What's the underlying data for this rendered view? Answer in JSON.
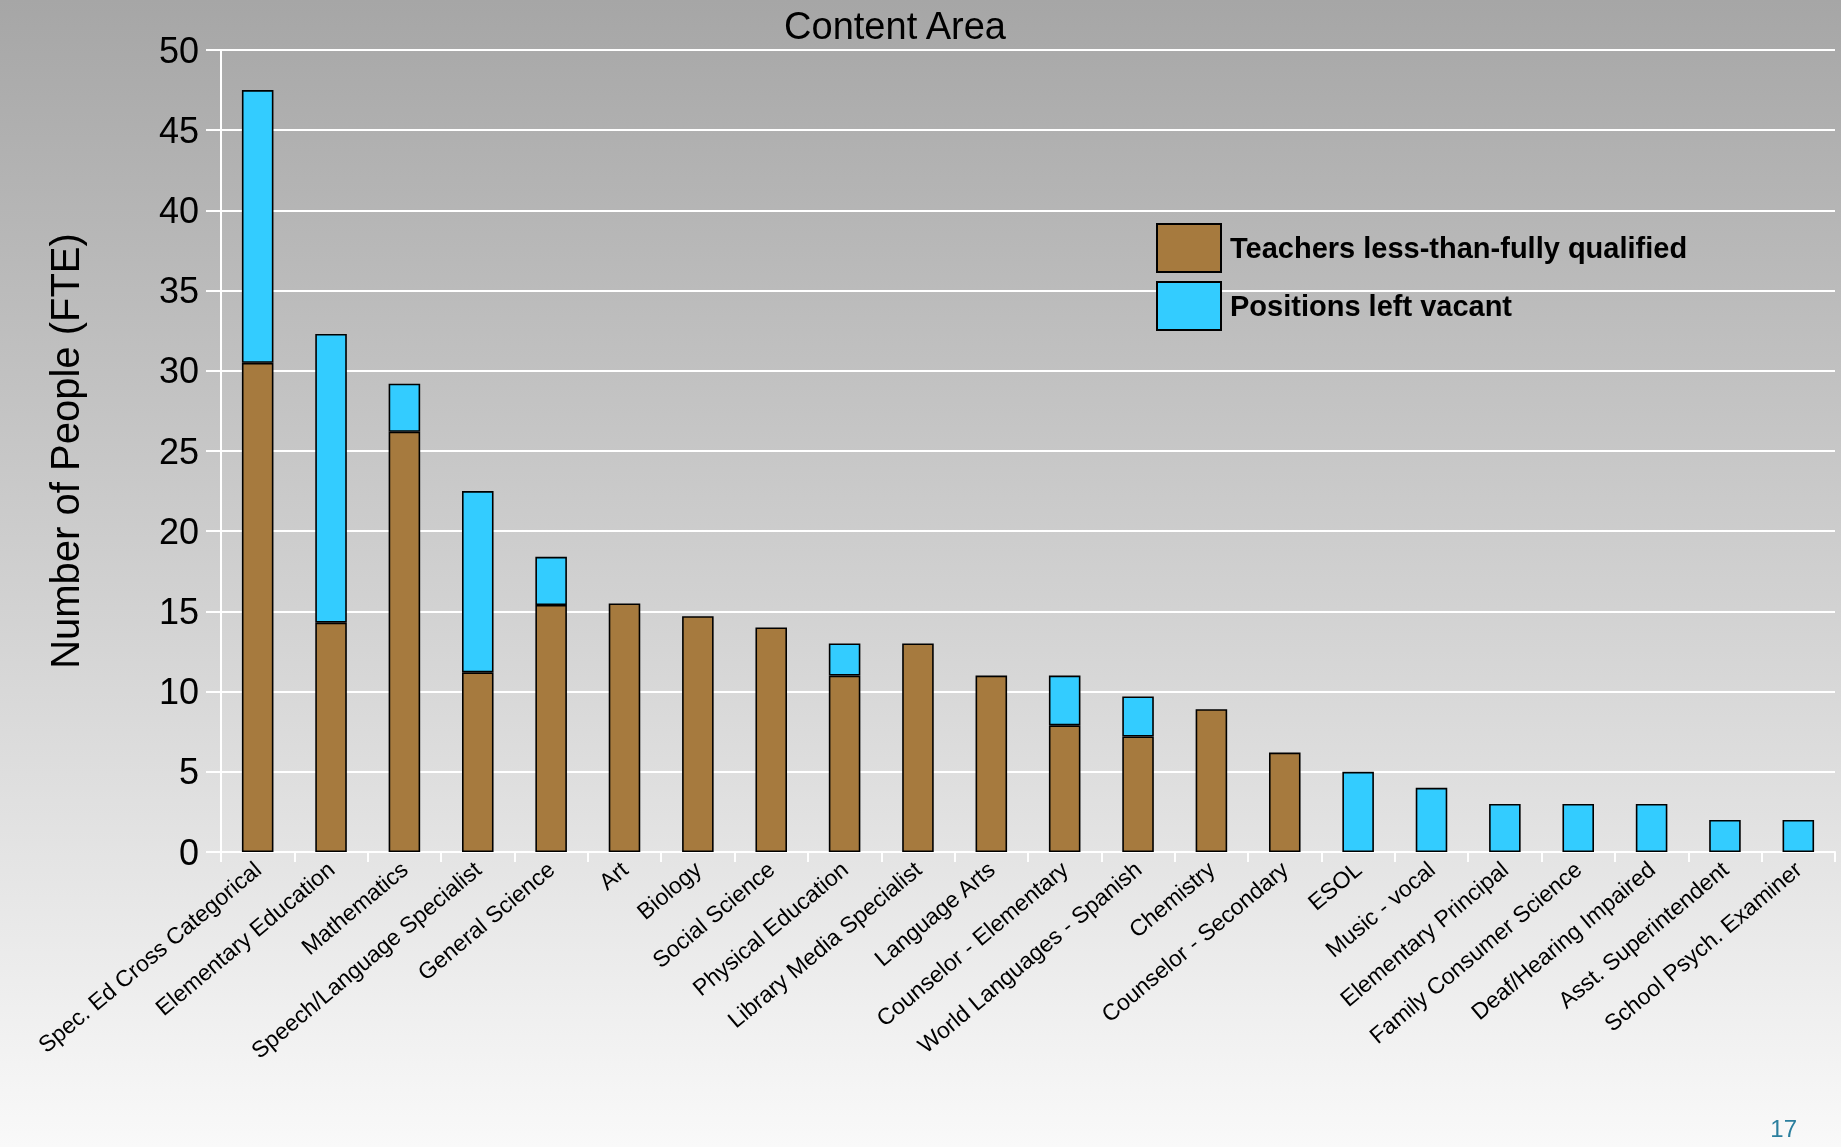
{
  "chart_data": {
    "type": "bar",
    "title": "Content Area",
    "ylabel": "Number of People (FTE)",
    "categories": [
      "Spec. Ed Cross Categorical",
      "Elementary Education",
      "Mathematics",
      "Speech/Language Specialist",
      "General Science",
      "Art",
      "Biology",
      "Social Science",
      "Physical Education",
      "Library Media Specialist",
      "Language Arts",
      "Counselor - Elementary",
      "World Languages - Spanish",
      "Chemistry",
      "Counselor - Secondary",
      "ESOL",
      "Music - vocal",
      "Elementary Principal",
      "Family Consumer Science",
      "Deaf/Hearing Impaired",
      "Asst. Superintendent",
      "School Psych. Examiner"
    ],
    "series": [
      {
        "name": "Teachers less-than-fully qualified",
        "color": "#a67a3e",
        "values": [
          30.5,
          14.3,
          26.2,
          11.2,
          15.4,
          15.5,
          14.7,
          14.0,
          11.0,
          13.0,
          11.0,
          7.9,
          7.2,
          8.9,
          6.2,
          null,
          null,
          null,
          null,
          null,
          null,
          null
        ]
      },
      {
        "name": "Positions left vacant",
        "color": "#33ccff",
        "values": [
          17.0,
          18.0,
          3.0,
          11.3,
          3.0,
          null,
          null,
          null,
          2.0,
          null,
          null,
          3.1,
          2.5,
          null,
          null,
          5.0,
          4.0,
          3.0,
          3.0,
          3.0,
          2.0,
          2.0
        ]
      }
    ],
    "stacked": true,
    "ylim": [
      0,
      50
    ],
    "yticks": [
      0,
      5,
      10,
      15,
      20,
      25,
      30,
      35,
      40,
      45,
      50
    ],
    "grid": "y",
    "legend": "top right",
    "annotations": [
      "17"
    ]
  }
}
